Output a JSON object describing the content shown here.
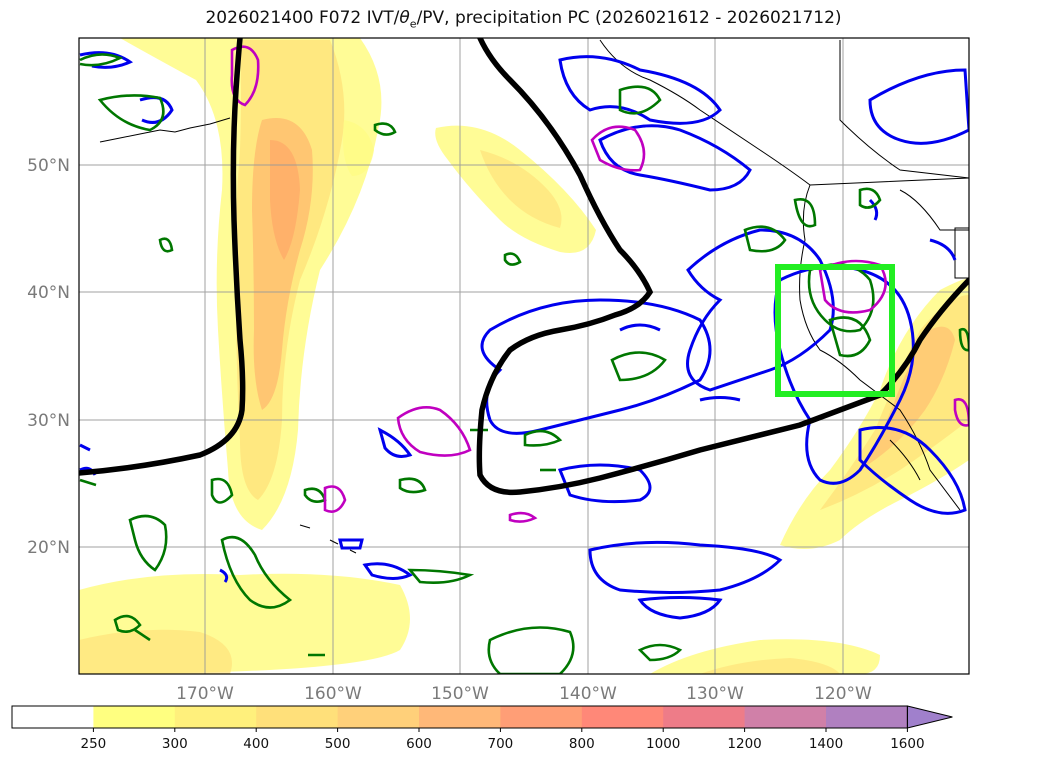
{
  "title": {
    "prefix": "2026021400 F072 IVT/",
    "theta_symbol": "θ",
    "theta_sub": "e",
    "suffix": "/PV, precipitation PC (2026021612 - 2026021712)"
  },
  "map": {
    "lon_range": [
      -180,
      -110
    ],
    "lat_range": [
      10,
      60
    ],
    "lat_labels": [
      {
        "lat": 50,
        "text": "50°N"
      },
      {
        "lat": 40,
        "text": "40°N"
      },
      {
        "lat": 30,
        "text": "30°N"
      },
      {
        "lat": 20,
        "text": "20°N"
      }
    ],
    "lon_labels": [
      {
        "lon": -170,
        "text": "170°W"
      },
      {
        "lon": -160,
        "text": "160°W"
      },
      {
        "lon": -150,
        "text": "150°W"
      },
      {
        "lon": -140,
        "text": "140°W"
      },
      {
        "lon": -130,
        "text": "130°W"
      },
      {
        "lon": -120,
        "text": "120°W"
      }
    ],
    "highlight_box": {
      "lon_range": [
        -125,
        -116
      ],
      "lat_range": [
        32,
        42
      ],
      "color": "#22ee22"
    },
    "colors": {
      "ivt_fill": [
        "#fffb84",
        "#ffe27a",
        "#ffc070",
        "#ffa066"
      ],
      "theta_e_contour": "#000000",
      "precip_contour": "#0000ee",
      "pv_contour": "#008000",
      "pv2_contour": "#c000c0"
    }
  },
  "colorbar": {
    "ticks": [
      "250",
      "300",
      "400",
      "500",
      "600",
      "700",
      "800",
      "1000",
      "1200",
      "1400",
      "1600"
    ],
    "colors": [
      "#ffffff",
      "#ffff80",
      "#fff07c",
      "#ffe07a",
      "#ffd07a",
      "#ffb878",
      "#ff9e76",
      "#ff8878",
      "#ee7c88",
      "#d080a8",
      "#b080c0",
      "#a080cc"
    ]
  }
}
